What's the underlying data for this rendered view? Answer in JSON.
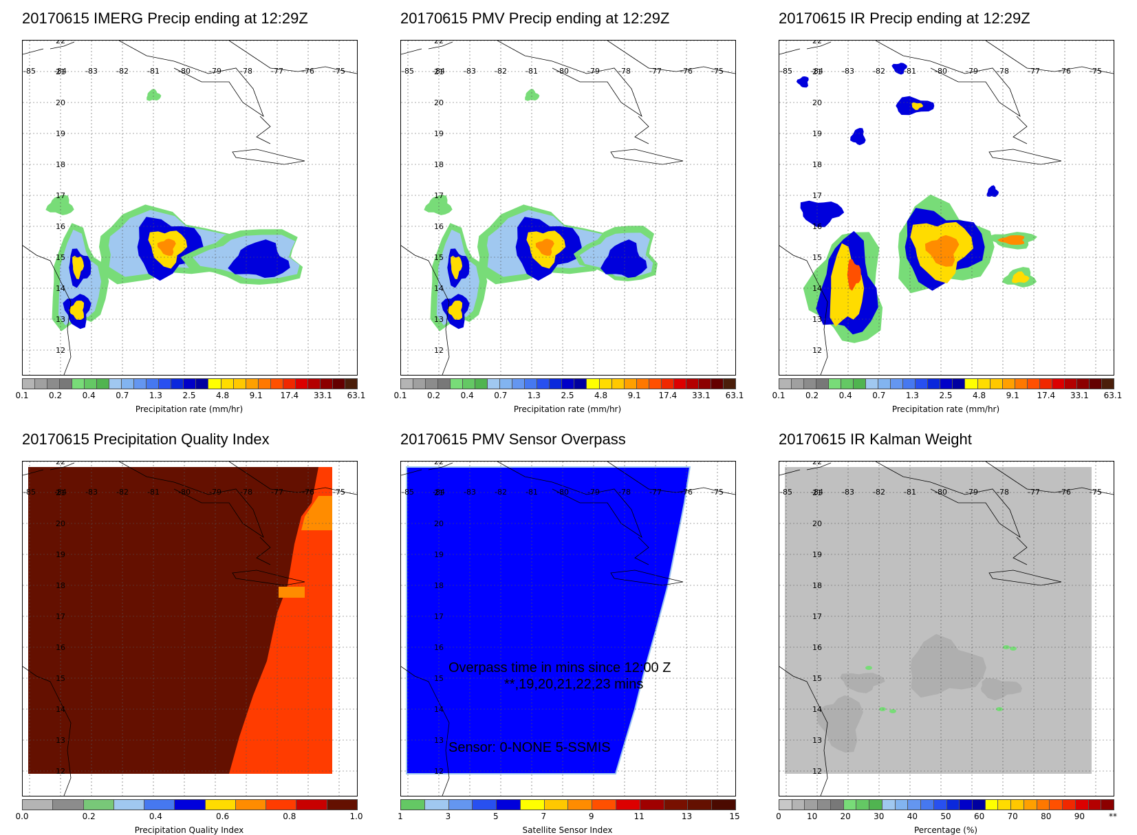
{
  "panels": [
    {
      "title": "20170615 IMERG Precip ending at 12:29Z",
      "type": "precip",
      "colorbar": {
        "unit": "Precipitation rate (mm/hr)",
        "ticks": [
          "0.1",
          "0.2",
          "0.4",
          "0.7",
          "1.3",
          "2.5",
          "4.8",
          "9.1",
          "17.4",
          "33.1",
          "63.1"
        ],
        "colors": [
          "#b4b4b4",
          "#a0a0a0",
          "#8c8c8c",
          "#787878",
          "#78dc78",
          "#64c864",
          "#50b450",
          "#a0c8f0",
          "#82b4f0",
          "#6496f0",
          "#4678f0",
          "#2850f0",
          "#0a28dc",
          "#0000c8",
          "#0000a0",
          "#ffff00",
          "#ffdc00",
          "#ffc800",
          "#ffa000",
          "#ff7800",
          "#ff5000",
          "#f02800",
          "#dc0000",
          "#b40000",
          "#8c0000",
          "#640000",
          "#4b1e0a"
        ]
      }
    },
    {
      "title": "20170615 PMV Precip ending at 12:29Z",
      "type": "precip",
      "colorbar": {
        "unit": "Precipitation rate (mm/hr)",
        "ticks": [
          "0.1",
          "0.2",
          "0.4",
          "0.7",
          "1.3",
          "2.5",
          "4.8",
          "9.1",
          "17.4",
          "33.1",
          "63.1"
        ],
        "colors": [
          "#b4b4b4",
          "#a0a0a0",
          "#8c8c8c",
          "#787878",
          "#78dc78",
          "#64c864",
          "#50b450",
          "#a0c8f0",
          "#82b4f0",
          "#6496f0",
          "#4678f0",
          "#2850f0",
          "#0a28dc",
          "#0000c8",
          "#0000a0",
          "#ffff00",
          "#ffdc00",
          "#ffc800",
          "#ffa000",
          "#ff7800",
          "#ff5000",
          "#f02800",
          "#dc0000",
          "#b40000",
          "#8c0000",
          "#640000",
          "#4b1e0a"
        ]
      }
    },
    {
      "title": "20170615 IR Precip ending at 12:29Z",
      "type": "precip",
      "colorbar": {
        "unit": "Precipitation rate (mm/hr)",
        "ticks": [
          "0.1",
          "0.2",
          "0.4",
          "0.7",
          "1.3",
          "2.5",
          "4.8",
          "9.1",
          "17.4",
          "33.1",
          "63.1"
        ],
        "colors": [
          "#b4b4b4",
          "#a0a0a0",
          "#8c8c8c",
          "#787878",
          "#78dc78",
          "#64c864",
          "#50b450",
          "#a0c8f0",
          "#82b4f0",
          "#6496f0",
          "#4678f0",
          "#2850f0",
          "#0a28dc",
          "#0000c8",
          "#0000a0",
          "#ffff00",
          "#ffdc00",
          "#ffc800",
          "#ffa000",
          "#ff7800",
          "#ff5000",
          "#f02800",
          "#dc0000",
          "#b40000",
          "#8c0000",
          "#640000",
          "#4b1e0a"
        ]
      }
    },
    {
      "title": "20170615 Precipitation Quality Index",
      "type": "quality",
      "colorbar": {
        "unit": "Precipitation Quality Index",
        "ticks": [
          "0.0",
          "0.2",
          "0.4",
          "0.6",
          "0.8",
          "1.0"
        ],
        "colors": [
          "#b4b4b4",
          "#8c8c8c",
          "#78c878",
          "#a0c8f0",
          "#4678f0",
          "#0000dc",
          "#ffdc00",
          "#ff8c00",
          "#ff3c00",
          "#c80000",
          "#641000"
        ]
      }
    },
    {
      "title": "20170615 PMV Sensor Overpass",
      "type": "overpass",
      "overlay": {
        "line1": "Overpass time in mins since 12:00 Z",
        "line2": "**,19,20,21,22,23 mins",
        "line3": "Sensor:   0-NONE  5-SSMIS"
      },
      "colorbar": {
        "unit": "Satellite Sensor Index",
        "ticks": [
          "1",
          "3",
          "5",
          "7",
          "9",
          "11",
          "13",
          "15"
        ],
        "colors": [
          "#64c864",
          "#a0c8f0",
          "#6496f0",
          "#2850f0",
          "#0000dc",
          "#ffff00",
          "#ffc800",
          "#ff8c00",
          "#ff5000",
          "#dc0000",
          "#a00000",
          "#781000",
          "#641000",
          "#4b0a00"
        ]
      }
    },
    {
      "title": "20170615 IR Kalman Weight",
      "type": "kalman",
      "colorbar": {
        "unit": "Percentage (%)",
        "ticks": [
          "0",
          "10",
          "20",
          "30",
          "40",
          "50",
          "60",
          "70",
          "80",
          "90",
          "**"
        ],
        "colors": [
          "#c8c8c8",
          "#b4b4b4",
          "#a0a0a0",
          "#8c8c8c",
          "#787878",
          "#78dc78",
          "#64c864",
          "#50b450",
          "#a0c8f0",
          "#82b4f0",
          "#6496f0",
          "#4678f0",
          "#2850f0",
          "#0a28dc",
          "#0000c8",
          "#0000a0",
          "#ffff00",
          "#ffdc00",
          "#ffc800",
          "#ffa000",
          "#ff7800",
          "#ff5000",
          "#f02800",
          "#dc0000",
          "#b40000",
          "#8c0000"
        ]
      }
    }
  ],
  "map": {
    "lon_labels": [
      "-85",
      "-84",
      "-83",
      "-82",
      "-81",
      "-80",
      "-79",
      "-78",
      "-77",
      "-76",
      "-75"
    ],
    "lat_labels": [
      "12",
      "13",
      "14",
      "15",
      "16",
      "17",
      "18",
      "19",
      "20",
      "21",
      "22"
    ],
    "lon_range": [
      -85,
      -75
    ],
    "lat_range": [
      12,
      22
    ]
  },
  "colors": {
    "blue_fill": "#0000ff",
    "quality_dark": "#641000",
    "quality_red": "#ff3c00",
    "quality_orange": "#ff8c00",
    "kalman_gray": "#c0c0c0"
  }
}
